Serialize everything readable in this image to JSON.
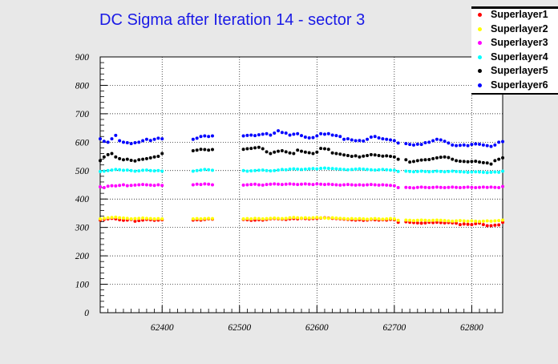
{
  "chart_data": {
    "type": "scatter",
    "title": "DC Sigma after Iteration 14 - sector 3",
    "xlabel": "",
    "ylabel": "",
    "xlim": [
      62320,
      62840
    ],
    "ylim": [
      0,
      900
    ],
    "xticks": [
      62400,
      62500,
      62600,
      62700,
      62800
    ],
    "yticks": [
      0,
      100,
      200,
      300,
      400,
      500,
      600,
      700,
      800,
      900
    ],
    "grid": true,
    "legend_position": "top-right",
    "x": [
      62320,
      62325,
      62330,
      62335,
      62340,
      62345,
      62350,
      62355,
      62360,
      62365,
      62370,
      62375,
      62380,
      62385,
      62390,
      62395,
      62400,
      62440,
      62445,
      62450,
      62455,
      62460,
      62465,
      62505,
      62510,
      62515,
      62520,
      62525,
      62530,
      62535,
      62540,
      62545,
      62550,
      62555,
      62560,
      62565,
      62570,
      62575,
      62580,
      62585,
      62590,
      62595,
      62600,
      62605,
      62610,
      62615,
      62620,
      62625,
      62630,
      62635,
      62640,
      62645,
      62650,
      62655,
      62660,
      62665,
      62670,
      62675,
      62680,
      62685,
      62690,
      62695,
      62700,
      62705,
      62715,
      62720,
      62725,
      62730,
      62735,
      62740,
      62745,
      62750,
      62755,
      62760,
      62765,
      62770,
      62775,
      62780,
      62785,
      62790,
      62795,
      62800,
      62805,
      62810,
      62815,
      62820,
      62825,
      62830,
      62835,
      62840
    ],
    "series": [
      {
        "name": "Superlayer1",
        "color": "#ff0000",
        "values": [
          326,
          328,
          330,
          332,
          330,
          327,
          325,
          326,
          328,
          322,
          324,
          326,
          328,
          327,
          325,
          326,
          327,
          326,
          327,
          326,
          328,
          330,
          329,
          328,
          327,
          325,
          326,
          327,
          326,
          328,
          330,
          331,
          330,
          329,
          328,
          330,
          331,
          330,
          332,
          331,
          330,
          331,
          332,
          333,
          334,
          333,
          332,
          331,
          330,
          329,
          328,
          327,
          326,
          327,
          325,
          326,
          328,
          327,
          326,
          327,
          326,
          328,
          327,
          318,
          320,
          318,
          317,
          316,
          315,
          316,
          318,
          317,
          318,
          317,
          316,
          317,
          316,
          315,
          310,
          312,
          311,
          310,
          313,
          315,
          310,
          306,
          306,
          308,
          309,
          318
        ]
      },
      {
        "name": "Superlayer2",
        "color": "#ffff00",
        "values": [
          330,
          332,
          334,
          335,
          336,
          334,
          333,
          332,
          330,
          331,
          332,
          333,
          332,
          331,
          330,
          331,
          330,
          330,
          331,
          330,
          331,
          332,
          331,
          330,
          331,
          330,
          332,
          331,
          330,
          331,
          332,
          333,
          332,
          331,
          332,
          334,
          335,
          334,
          333,
          334,
          333,
          334,
          335,
          334,
          333,
          332,
          334,
          333,
          332,
          331,
          330,
          331,
          330,
          331,
          330,
          329,
          330,
          331,
          330,
          329,
          330,
          331,
          330,
          325,
          326,
          325,
          324,
          325,
          326,
          325,
          324,
          325,
          326,
          325,
          324,
          323,
          322,
          323,
          324,
          323,
          322,
          323,
          322,
          321,
          322,
          323,
          322,
          323,
          324,
          326
        ]
      },
      {
        "name": "Superlayer3",
        "color": "#ff00ff",
        "values": [
          443,
          440,
          445,
          447,
          446,
          448,
          450,
          447,
          448,
          449,
          450,
          451,
          450,
          449,
          448,
          450,
          448,
          450,
          452,
          451,
          453,
          452,
          450,
          449,
          450,
          451,
          452,
          450,
          449,
          451,
          452,
          453,
          452,
          451,
          452,
          453,
          452,
          451,
          452,
          453,
          452,
          451,
          453,
          452,
          451,
          452,
          451,
          450,
          449,
          450,
          451,
          450,
          449,
          450,
          449,
          450,
          451,
          450,
          449,
          450,
          449,
          448,
          447,
          440,
          441,
          440,
          439,
          441,
          442,
          441,
          440,
          441,
          442,
          441,
          440,
          441,
          442,
          441,
          440,
          441,
          442,
          441,
          440,
          441,
          442,
          441,
          442,
          441,
          440,
          444
        ]
      },
      {
        "name": "Superlayer4",
        "color": "#00ffff",
        "values": [
          497,
          498,
          500,
          502,
          504,
          503,
          501,
          502,
          500,
          498,
          499,
          501,
          502,
          500,
          499,
          500,
          498,
          498,
          500,
          502,
          504,
          503,
          501,
          500,
          498,
          499,
          500,
          501,
          502,
          500,
          499,
          500,
          502,
          504,
          503,
          505,
          506,
          505,
          504,
          505,
          506,
          507,
          506,
          508,
          509,
          508,
          507,
          506,
          505,
          504,
          503,
          504,
          505,
          506,
          505,
          504,
          503,
          502,
          503,
          504,
          503,
          502,
          501,
          497,
          498,
          497,
          496,
          497,
          498,
          497,
          496,
          497,
          498,
          497,
          496,
          497,
          498,
          497,
          496,
          495,
          494,
          495,
          496,
          495,
          494,
          493,
          494,
          495,
          494,
          498
        ]
      },
      {
        "name": "Superlayer5",
        "color": "#000000",
        "values": [
          535,
          548,
          556,
          560,
          548,
          542,
          538,
          540,
          536,
          534,
          538,
          540,
          542,
          545,
          548,
          550,
          560,
          570,
          572,
          575,
          574,
          572,
          574,
          575,
          577,
          578,
          580,
          582,
          577,
          566,
          560,
          565,
          568,
          570,
          566,
          562,
          560,
          572,
          568,
          565,
          563,
          560,
          565,
          578,
          577,
          575,
          562,
          560,
          558,
          555,
          553,
          550,
          552,
          548,
          551,
          553,
          556,
          555,
          553,
          551,
          552,
          550,
          548,
          540,
          538,
          530,
          532,
          535,
          537,
          538,
          539,
          542,
          545,
          547,
          548,
          546,
          540,
          535,
          533,
          532,
          531,
          532,
          533,
          530,
          528,
          527,
          523,
          535,
          540,
          545
        ]
      },
      {
        "name": "Superlayer6",
        "color": "#0000ff",
        "values": [
          612,
          603,
          600,
          612,
          624,
          605,
          600,
          598,
          595,
          598,
          600,
          605,
          610,
          606,
          610,
          614,
          612,
          610,
          614,
          620,
          622,
          620,
          622,
          622,
          624,
          625,
          623,
          626,
          628,
          630,
          625,
          632,
          640,
          634,
          632,
          625,
          628,
          630,
          623,
          618,
          615,
          616,
          622,
          630,
          628,
          630,
          625,
          623,
          620,
          610,
          612,
          608,
          605,
          606,
          604,
          610,
          618,
          620,
          615,
          612,
          610,
          608,
          605,
          597,
          595,
          592,
          590,
          593,
          592,
          598,
          600,
          605,
          610,
          608,
          603,
          597,
          590,
          588,
          589,
          590,
          588,
          592,
          594,
          593,
          590,
          588,
          585,
          590,
          600,
          602
        ]
      }
    ]
  }
}
